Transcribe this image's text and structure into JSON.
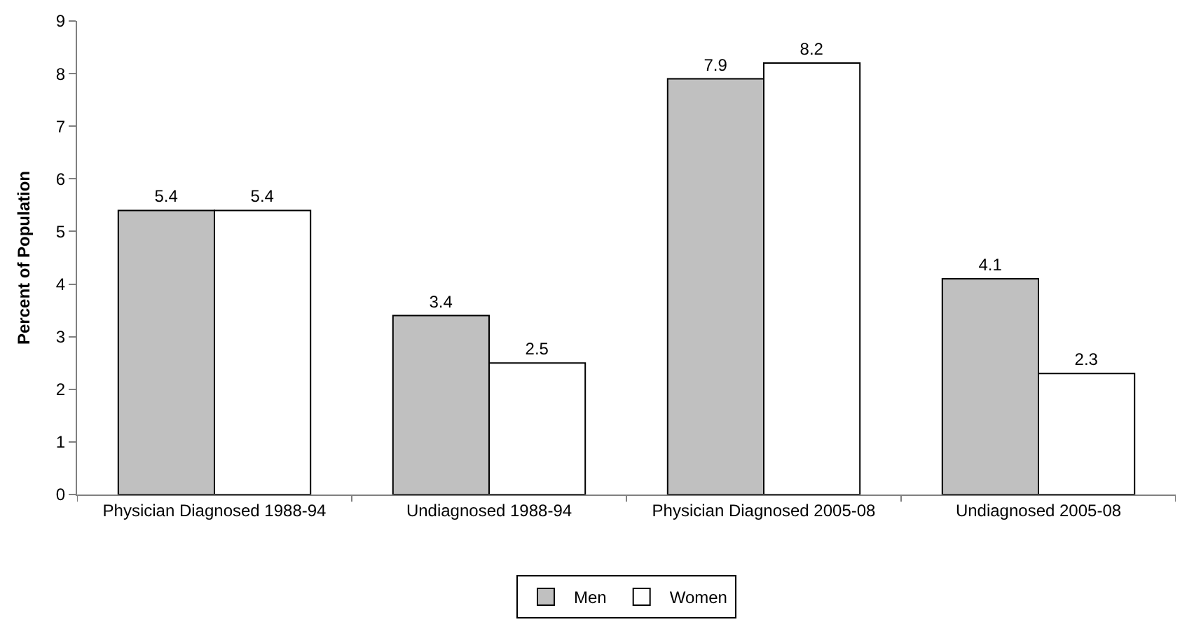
{
  "chart_data": {
    "type": "bar",
    "ylabel": "Percent of Population",
    "categories": [
      "Physician Diagnosed 1988-94",
      "Undiagnosed 1988-94",
      "Physician Diagnosed 2005-08",
      "Undiagnosed 2005-08"
    ],
    "series": [
      {
        "name": "Men",
        "color": "#c0c0c0",
        "values": [
          5.4,
          3.4,
          7.9,
          4.1
        ]
      },
      {
        "name": "Women",
        "color": "#ffffff",
        "values": [
          5.4,
          2.5,
          8.2,
          2.3
        ]
      }
    ],
    "ylim": [
      0,
      9
    ],
    "yticks": [
      0,
      1,
      2,
      3,
      4,
      5,
      6,
      7,
      8,
      9
    ],
    "legend": "bottom",
    "data_labels": true
  }
}
